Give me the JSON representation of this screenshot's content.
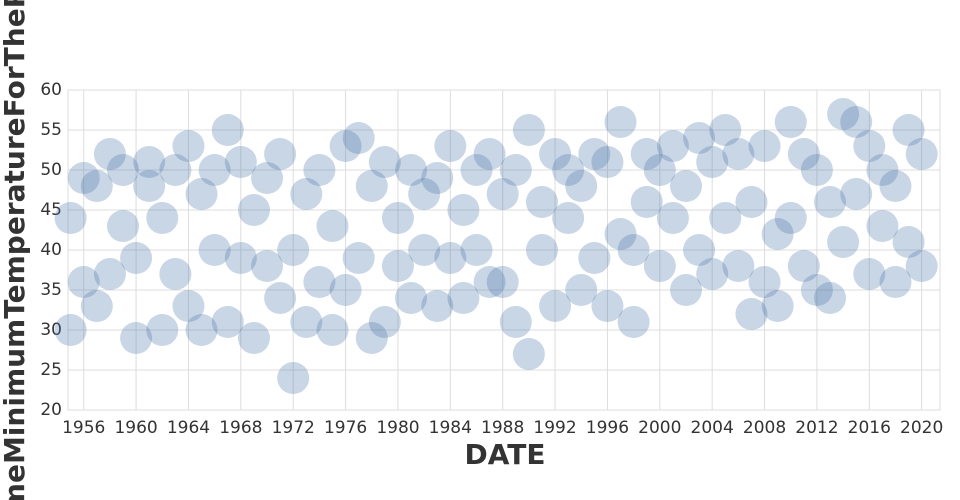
{
  "chart_data": {
    "type": "scatter",
    "x_label": "DATE",
    "y_label": "meMinimumTemperatureForTheP",
    "color": "#4c78a8",
    "grid": true,
    "xlim": [
      1954.8,
      2021.4
    ],
    "xticks": [
      1956,
      1960,
      1964,
      1968,
      1972,
      1976,
      1980,
      1984,
      1988,
      1992,
      1996,
      2000,
      2004,
      2008,
      2012,
      2016,
      2020
    ],
    "ylim": [
      20,
      60
    ],
    "yticks": [
      20,
      25,
      30,
      35,
      40,
      45,
      50,
      55,
      60
    ],
    "x": [
      1955,
      1955,
      1956,
      1956,
      1957,
      1957,
      1958,
      1958,
      1959,
      1959,
      1960,
      1960,
      1961,
      1961,
      1962,
      1962,
      1963,
      1963,
      1964,
      1964,
      1965,
      1965,
      1966,
      1966,
      1967,
      1967,
      1968,
      1968,
      1969,
      1969,
      1970,
      1970,
      1971,
      1971,
      1972,
      1972,
      1973,
      1973,
      1974,
      1974,
      1975,
      1975,
      1976,
      1976,
      1977,
      1977,
      1978,
      1978,
      1979,
      1979,
      1980,
      1980,
      1981,
      1981,
      1982,
      1982,
      1983,
      1983,
      1984,
      1984,
      1985,
      1985,
      1986,
      1986,
      1987,
      1987,
      1988,
      1988,
      1989,
      1989,
      1990,
      1990,
      1991,
      1991,
      1992,
      1992,
      1993,
      1993,
      1994,
      1994,
      1995,
      1995,
      1996,
      1996,
      1997,
      1997,
      1998,
      1998,
      1999,
      1999,
      2000,
      2000,
      2001,
      2001,
      2002,
      2002,
      2003,
      2003,
      2004,
      2004,
      2005,
      2005,
      2006,
      2006,
      2007,
      2007,
      2008,
      2008,
      2009,
      2009,
      2010,
      2010,
      2011,
      2011,
      2012,
      2012,
      2013,
      2013,
      2014,
      2014,
      2015,
      2015,
      2016,
      2016,
      2017,
      2017,
      2018,
      2018,
      2019,
      2019,
      2020,
      2020
    ],
    "values": [
      30,
      44,
      49,
      36,
      33,
      48,
      37,
      52,
      50,
      43,
      29,
      39,
      48,
      51,
      30,
      44,
      50,
      37,
      33,
      53,
      30,
      47,
      40,
      50,
      55,
      31,
      39,
      51,
      29,
      45,
      38,
      49,
      34,
      52,
      40,
      24,
      31,
      47,
      50,
      36,
      30,
      43,
      35,
      53,
      54,
      39,
      29,
      48,
      51,
      31,
      38,
      44,
      50,
      34,
      40,
      47,
      33,
      49,
      53,
      39,
      34,
      45,
      50,
      40,
      36,
      52,
      47,
      36,
      31,
      50,
      55,
      27,
      46,
      40,
      52,
      33,
      44,
      50,
      35,
      48,
      52,
      39,
      33,
      51,
      56,
      42,
      31,
      40,
      52,
      46,
      38,
      50,
      44,
      53,
      35,
      48,
      40,
      54,
      37,
      51,
      55,
      44,
      38,
      52,
      32,
      46,
      53,
      36,
      42,
      33,
      56,
      44,
      38,
      52,
      35,
      50,
      46,
      34,
      57,
      41,
      47,
      56,
      37,
      53,
      50,
      43,
      36,
      48,
      55,
      41,
      38,
      52
    ]
  }
}
